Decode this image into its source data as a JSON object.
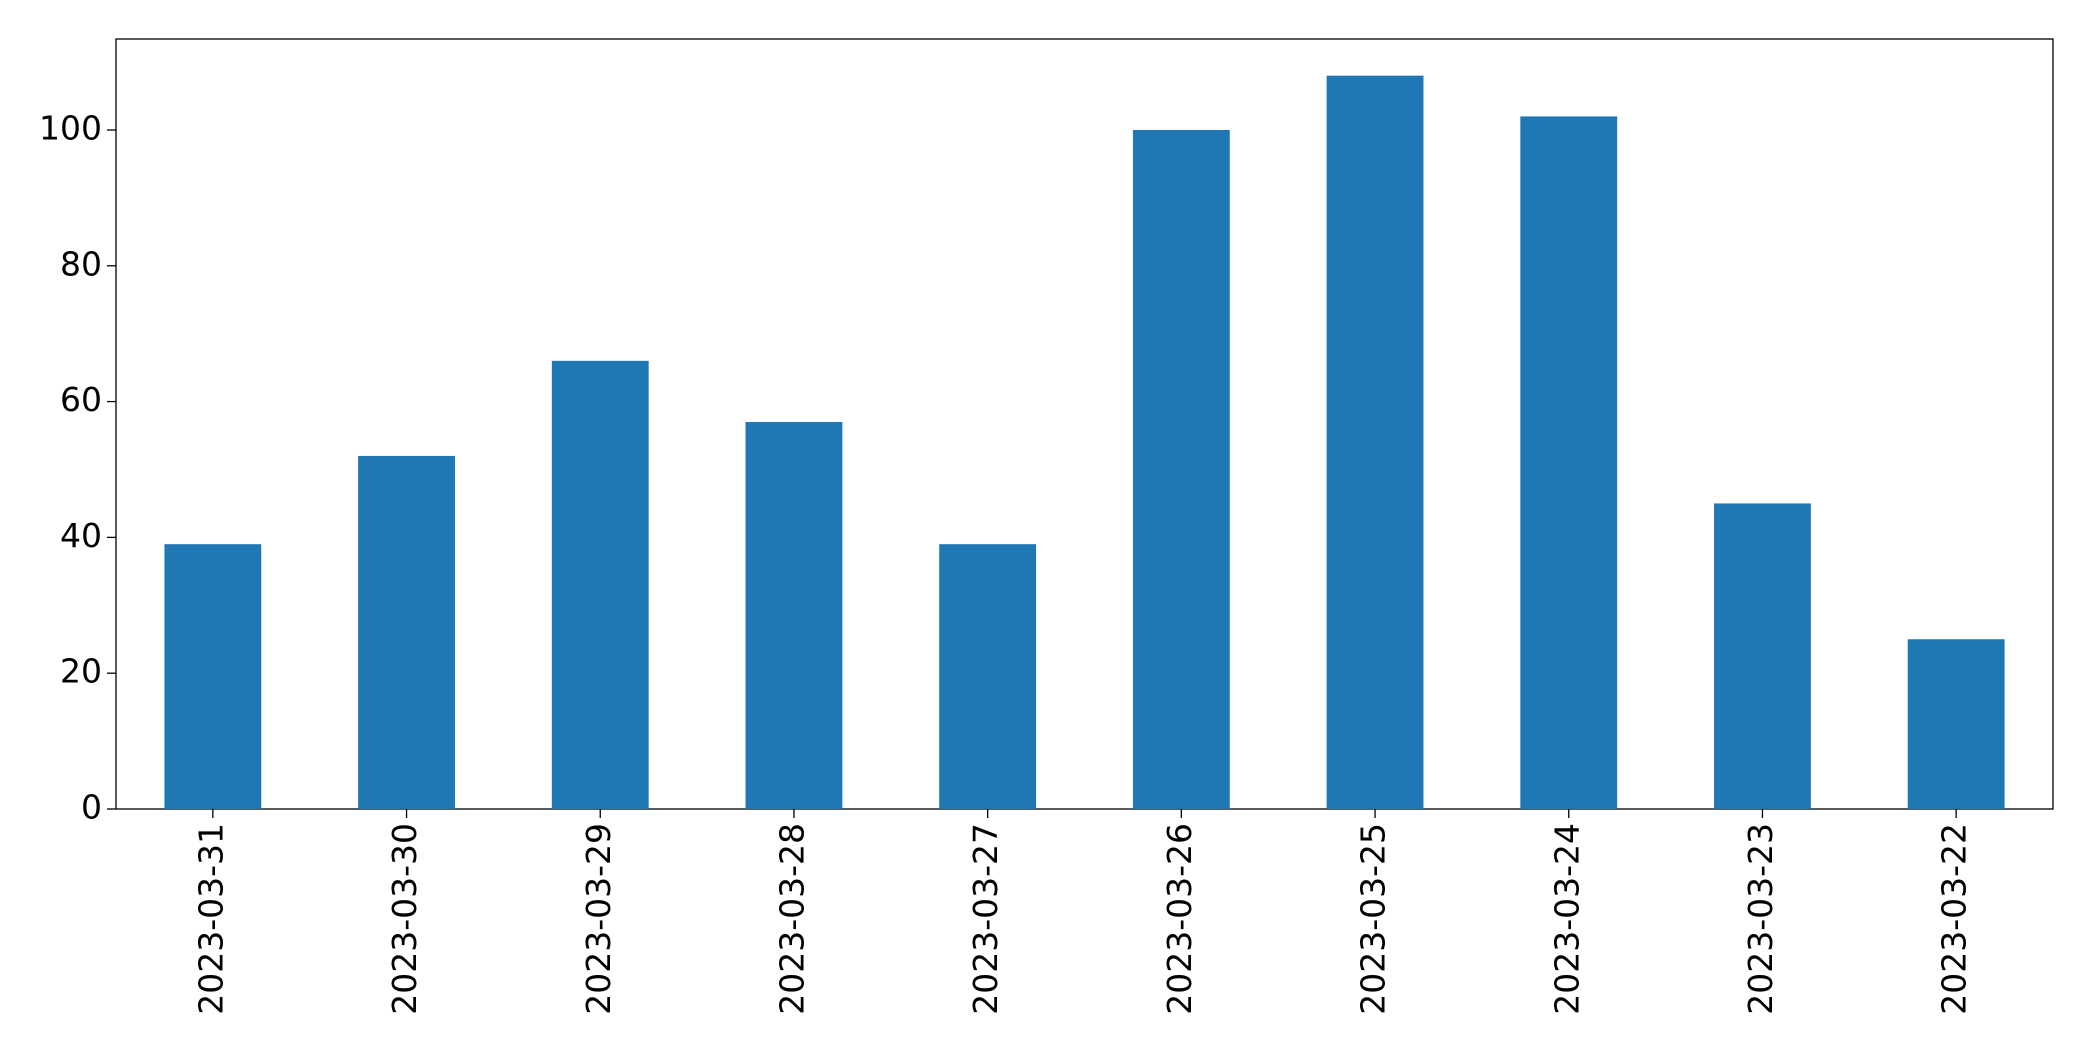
{
  "chart_data": {
    "type": "bar",
    "categories": [
      "2023-03-31",
      "2023-03-30",
      "2023-03-29",
      "2023-03-28",
      "2023-03-27",
      "2023-03-26",
      "2023-03-25",
      "2023-03-24",
      "2023-03-23",
      "2023-03-22"
    ],
    "values": [
      39,
      52,
      66,
      57,
      39,
      100,
      108,
      102,
      45,
      25
    ],
    "color": "#1f77b4",
    "ylim": [
      0,
      113.4
    ],
    "yticks": [
      0,
      20,
      40,
      60,
      80,
      100
    ],
    "grid": false
  }
}
